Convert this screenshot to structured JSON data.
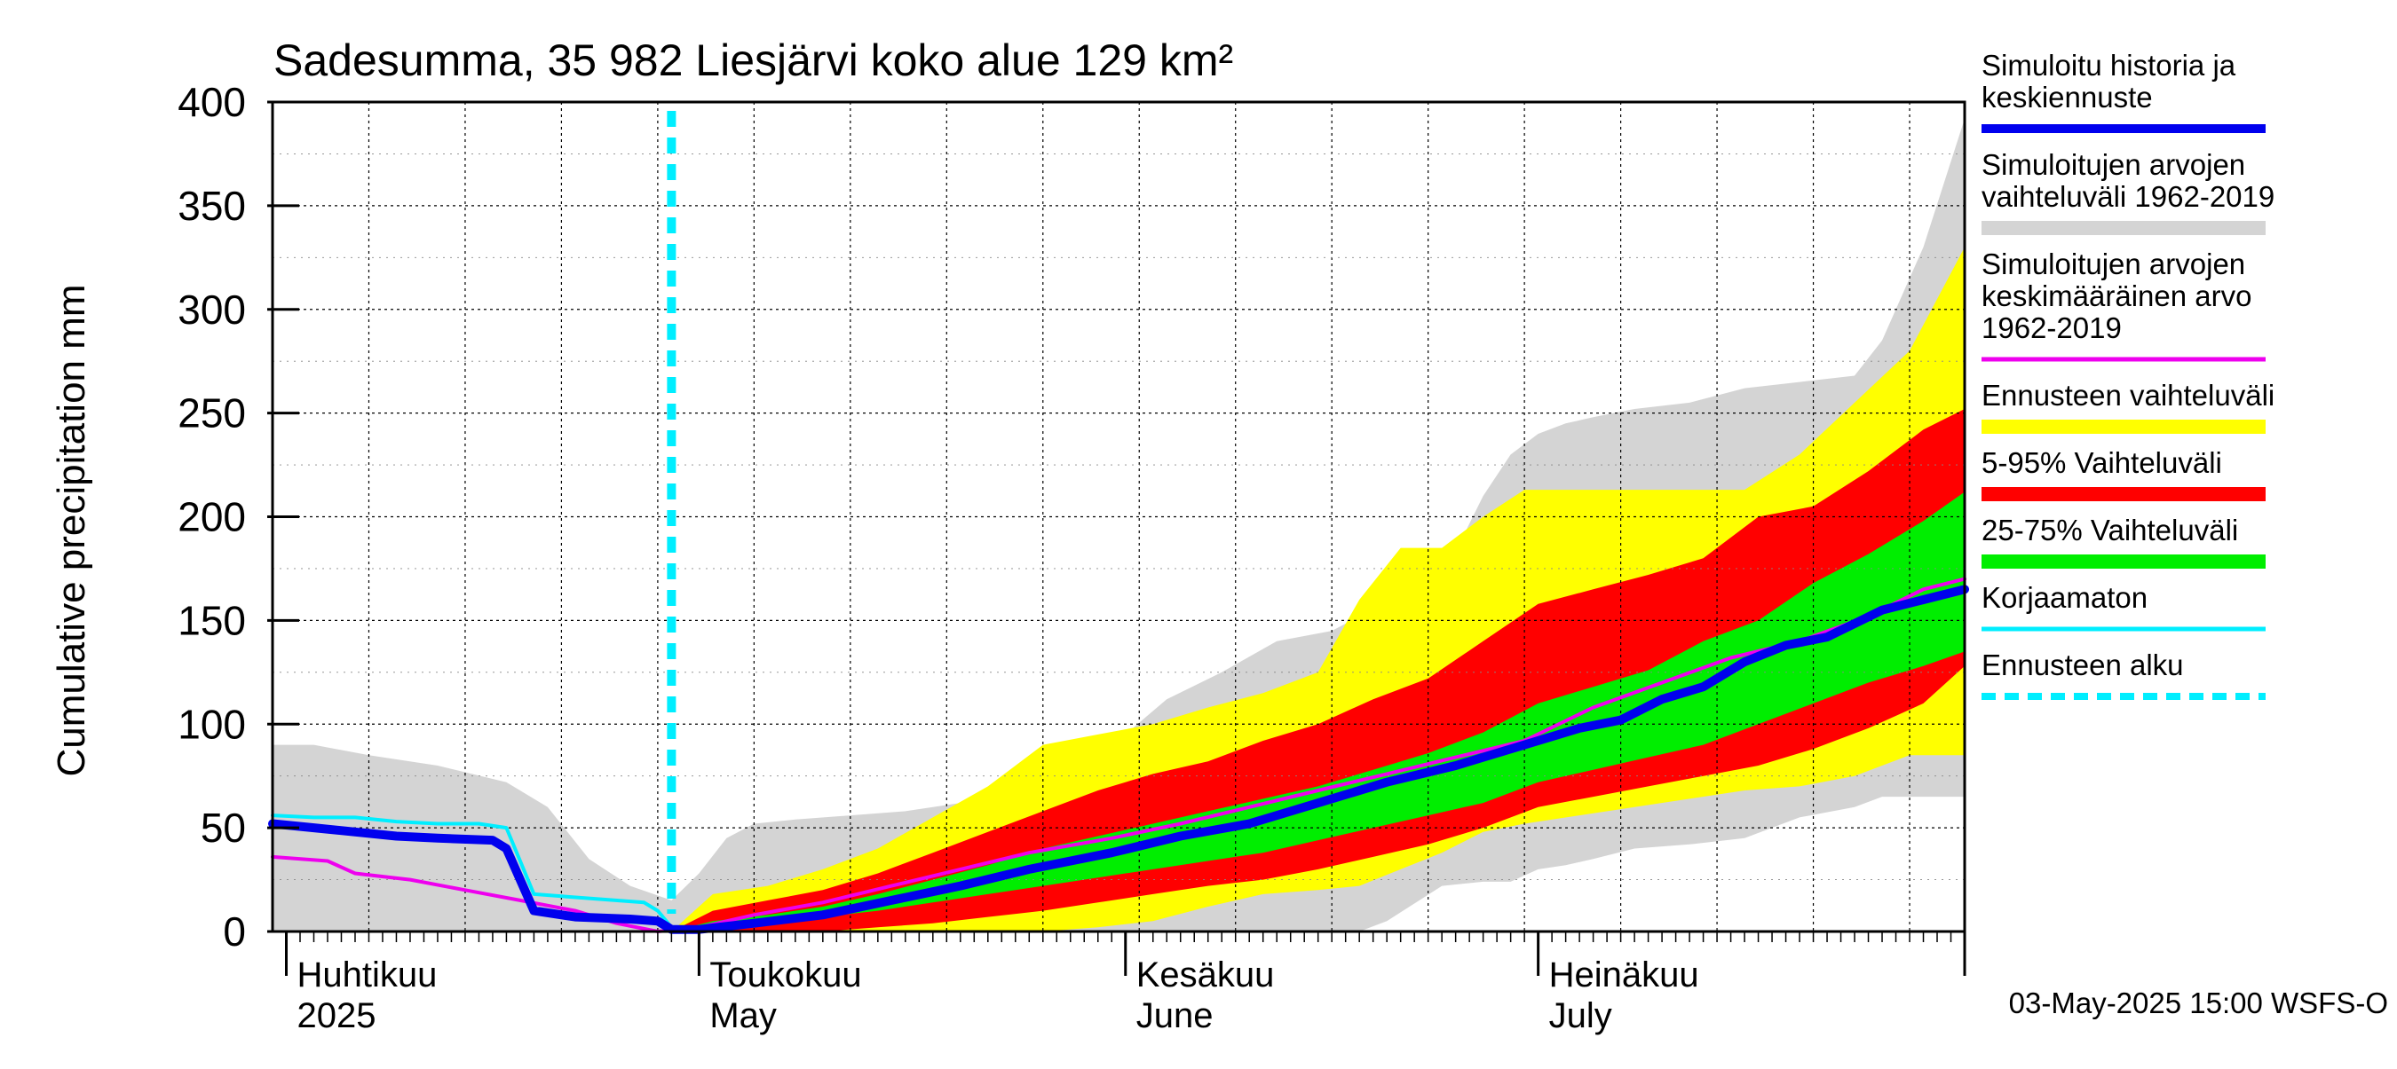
{
  "title": "Sadesumma, 35 982 Liesjärvi koko alue 129 km²",
  "footer": "03-May-2025 15:00 WSFS-O",
  "colors": {
    "historical_range": "#d4d4d4",
    "forecast_range": "#ffff00",
    "p5_95": "#ff0000",
    "p25_75": "#00ee00",
    "simulated": "#0000ee",
    "mean": "#ee00ee",
    "uncorrected": "#00eeff",
    "forecast_start": "#00eeff",
    "grid": "#000000"
  },
  "chart_data": {
    "type": "area",
    "title": "Sadesumma, 35 982 Liesjärvi koko alue 129 km²",
    "ylabel": "Cumulative precipitation   mm",
    "ylim": [
      0,
      400
    ],
    "yticks": [
      0,
      50,
      100,
      150,
      200,
      250,
      300,
      350,
      400
    ],
    "xlim": [
      "2025-03-31",
      "2025-08-01"
    ],
    "x_month_ticks": [
      "2025-04-01",
      "2025-05-01",
      "2025-06-01",
      "2025-07-01",
      "2025-08-01"
    ],
    "month_labels": [
      {
        "date": "2025-04-01",
        "fi": "Huhtikuu",
        "en": "2025"
      },
      {
        "date": "2025-05-01",
        "fi": "Toukokuu",
        "en": "May"
      },
      {
        "date": "2025-06-01",
        "fi": "Kesäkuu",
        "en": "June"
      },
      {
        "date": "2025-07-01",
        "fi": "Heinäkuu",
        "en": "July"
      }
    ],
    "forecast_start": "2025-04-29",
    "legend_position": "right",
    "legend": [
      {
        "label": "Simuloitu historia ja keskiennuste",
        "lines": [
          "Simuloitu historia ja",
          "keskiennuste"
        ],
        "color": "#0000ee",
        "style": "thick"
      },
      {
        "label": "Simuloitujen arvojen vaihteluväli 1962-2019",
        "lines": [
          "Simuloitujen arvojen",
          "vaihteluväli 1962-2019"
        ],
        "color": "#d4d4d4",
        "style": "band"
      },
      {
        "label": "Simuloitujen arvojen keskimääräinen arvo 1962-2019",
        "lines": [
          "Simuloitujen arvojen",
          "keskimääräinen arvo",
          "   1962-2019"
        ],
        "color": "#ee00ee",
        "style": "line"
      },
      {
        "label": "Ennusteen vaihteluväli",
        "lines": [
          "Ennusteen vaihteluväli"
        ],
        "color": "#ffff00",
        "style": "band"
      },
      {
        "label": "5-95% Vaihteluväli",
        "lines": [
          "5-95% Vaihteluväli"
        ],
        "color": "#ff0000",
        "style": "band"
      },
      {
        "label": "25-75% Vaihteluväli",
        "lines": [
          "25-75% Vaihteluväli"
        ],
        "color": "#00ee00",
        "style": "band"
      },
      {
        "label": "Korjaamaton",
        "lines": [
          "Korjaamaton"
        ],
        "color": "#00eeff",
        "style": "line"
      },
      {
        "label": "Ennusteen alku",
        "lines": [
          "Ennusteen alku"
        ],
        "color": "#00eeff",
        "style": "dashed"
      }
    ],
    "series": [
      {
        "name": "Simuloitujen arvojen vaihteluväli 1962-2019",
        "kind": "band",
        "x": [
          "2025-03-31",
          "2025-04-03",
          "2025-04-07",
          "2025-04-12",
          "2025-04-17",
          "2025-04-20",
          "2025-04-23",
          "2025-04-26",
          "2025-04-29",
          "2025-05-01",
          "2025-05-03",
          "2025-05-05",
          "2025-05-08",
          "2025-05-12",
          "2025-05-16",
          "2025-05-20",
          "2025-05-24",
          "2025-05-28",
          "2025-06-01",
          "2025-06-04",
          "2025-06-08",
          "2025-06-12",
          "2025-06-16",
          "2025-06-18",
          "2025-06-20",
          "2025-06-24",
          "2025-06-27",
          "2025-06-29",
          "2025-07-01",
          "2025-07-03",
          "2025-07-05",
          "2025-07-08",
          "2025-07-12",
          "2025-07-16",
          "2025-07-20",
          "2025-07-24",
          "2025-07-26",
          "2025-07-29",
          "2025-08-01"
        ],
        "lower": [
          0,
          0,
          0,
          0,
          0,
          0,
          0,
          0,
          0,
          0,
          0,
          0,
          0,
          0,
          0,
          0,
          0,
          0,
          0,
          0,
          0,
          0,
          0,
          0,
          5,
          22,
          24,
          24,
          30,
          32,
          35,
          40,
          42,
          45,
          55,
          60,
          65,
          65,
          65
        ],
        "upper": [
          90,
          90,
          85,
          80,
          72,
          60,
          35,
          22,
          15,
          28,
          45,
          52,
          54,
          56,
          58,
          62,
          70,
          82,
          95,
          112,
          125,
          140,
          145,
          152,
          158,
          170,
          210,
          230,
          240,
          245,
          248,
          252,
          255,
          262,
          265,
          268,
          285,
          330,
          392
        ]
      },
      {
        "name": "Ennusteen vaihteluväli",
        "kind": "band",
        "x": [
          "2025-04-29",
          "2025-05-02",
          "2025-05-06",
          "2025-05-10",
          "2025-05-14",
          "2025-05-18",
          "2025-05-22",
          "2025-05-26",
          "2025-05-30",
          "2025-06-03",
          "2025-06-07",
          "2025-06-11",
          "2025-06-15",
          "2025-06-18",
          "2025-06-21",
          "2025-06-24",
          "2025-06-27",
          "2025-06-30",
          "2025-07-04",
          "2025-07-08",
          "2025-07-12",
          "2025-07-16",
          "2025-07-20",
          "2025-07-24",
          "2025-07-28",
          "2025-08-01"
        ],
        "lower": [
          0,
          0,
          0,
          0,
          0,
          0,
          0,
          0,
          2,
          5,
          12,
          18,
          20,
          22,
          30,
          38,
          48,
          52,
          56,
          60,
          64,
          68,
          70,
          75,
          85,
          85
        ],
        "upper": [
          0,
          18,
          22,
          30,
          40,
          55,
          70,
          90,
          95,
          100,
          108,
          115,
          125,
          160,
          185,
          185,
          200,
          213,
          213,
          213,
          213,
          213,
          230,
          255,
          280,
          330
        ]
      },
      {
        "name": "5-95% Vaihteluväli",
        "kind": "band",
        "x": [
          "2025-04-29",
          "2025-05-02",
          "2025-05-06",
          "2025-05-10",
          "2025-05-14",
          "2025-05-18",
          "2025-05-22",
          "2025-05-26",
          "2025-05-30",
          "2025-06-03",
          "2025-06-07",
          "2025-06-11",
          "2025-06-15",
          "2025-06-19",
          "2025-06-23",
          "2025-06-27",
          "2025-07-01",
          "2025-07-05",
          "2025-07-09",
          "2025-07-13",
          "2025-07-17",
          "2025-07-21",
          "2025-07-25",
          "2025-07-29",
          "2025-08-01"
        ],
        "lower": [
          0,
          0,
          0,
          0,
          2,
          4,
          7,
          10,
          14,
          18,
          22,
          25,
          30,
          36,
          42,
          50,
          60,
          65,
          70,
          75,
          80,
          88,
          98,
          110,
          128
        ],
        "upper": [
          0,
          10,
          15,
          20,
          28,
          38,
          48,
          58,
          68,
          76,
          82,
          92,
          100,
          112,
          122,
          140,
          158,
          165,
          172,
          180,
          200,
          205,
          222,
          242,
          252
        ]
      },
      {
        "name": "25-75% Vaihteluväli",
        "kind": "band",
        "x": [
          "2025-04-29",
          "2025-05-02",
          "2025-05-06",
          "2025-05-10",
          "2025-05-14",
          "2025-05-18",
          "2025-05-22",
          "2025-05-26",
          "2025-05-30",
          "2025-06-03",
          "2025-06-07",
          "2025-06-11",
          "2025-06-15",
          "2025-06-19",
          "2025-06-23",
          "2025-06-27",
          "2025-07-01",
          "2025-07-05",
          "2025-07-09",
          "2025-07-13",
          "2025-07-17",
          "2025-07-21",
          "2025-07-25",
          "2025-07-29",
          "2025-08-01"
        ],
        "lower": [
          0,
          2,
          4,
          7,
          10,
          14,
          18,
          22,
          26,
          30,
          34,
          38,
          44,
          50,
          56,
          62,
          72,
          78,
          84,
          90,
          100,
          110,
          120,
          128,
          135
        ],
        "upper": [
          0,
          5,
          8,
          12,
          18,
          25,
          32,
          40,
          46,
          52,
          58,
          64,
          70,
          78,
          86,
          96,
          110,
          118,
          126,
          140,
          150,
          168,
          182,
          198,
          212
        ]
      },
      {
        "name": "Simuloitujen arvojen keskimääräinen arvo 1962-2019",
        "kind": "line",
        "x": [
          "2025-03-31",
          "2025-04-04",
          "2025-04-06",
          "2025-04-10",
          "2025-04-14",
          "2025-04-18",
          "2025-04-22",
          "2025-04-25",
          "2025-04-28",
          "2025-05-01",
          "2025-05-05",
          "2025-05-10",
          "2025-05-15",
          "2025-05-20",
          "2025-05-25",
          "2025-05-31",
          "2025-06-05",
          "2025-06-10",
          "2025-06-15",
          "2025-06-20",
          "2025-06-25",
          "2025-06-30",
          "2025-07-05",
          "2025-07-10",
          "2025-07-15",
          "2025-07-20",
          "2025-07-25",
          "2025-07-29",
          "2025-08-01"
        ],
        "values": [
          36,
          34,
          28,
          25,
          20,
          15,
          10,
          4,
          0,
          2,
          8,
          14,
          22,
          30,
          38,
          45,
          52,
          60,
          68,
          76,
          84,
          92,
          108,
          120,
          132,
          140,
          152,
          165,
          170
        ]
      },
      {
        "name": "Korjaamaton",
        "kind": "line",
        "x": [
          "2025-03-31",
          "2025-04-03",
          "2025-04-06",
          "2025-04-09",
          "2025-04-12",
          "2025-04-15",
          "2025-04-17",
          "2025-04-19",
          "2025-04-23",
          "2025-04-27",
          "2025-04-28",
          "2025-04-29",
          "2025-05-01",
          "2025-05-03"
        ],
        "values": [
          56,
          55,
          55,
          53,
          52,
          52,
          50,
          18,
          16,
          14,
          10,
          2,
          1,
          2
        ]
      },
      {
        "name": "Simuloitu historia ja keskiennuste",
        "kind": "line",
        "x": [
          "2025-03-31",
          "2025-04-03",
          "2025-04-06",
          "2025-04-09",
          "2025-04-12",
          "2025-04-16",
          "2025-04-17",
          "2025-04-19",
          "2025-04-22",
          "2025-04-26",
          "2025-04-28",
          "2025-04-29",
          "2025-05-01",
          "2025-05-05",
          "2025-05-10",
          "2025-05-15",
          "2025-05-20",
          "2025-05-25",
          "2025-05-31",
          "2025-06-05",
          "2025-06-10",
          "2025-06-15",
          "2025-06-20",
          "2025-06-25",
          "2025-06-30",
          "2025-07-04",
          "2025-07-07",
          "2025-07-10",
          "2025-07-13",
          "2025-07-16",
          "2025-07-19",
          "2025-07-22",
          "2025-07-26",
          "2025-07-29",
          "2025-08-01"
        ],
        "values": [
          52,
          50,
          48,
          46,
          45,
          44,
          40,
          10,
          7,
          6,
          5,
          1,
          1,
          4,
          8,
          15,
          22,
          30,
          38,
          46,
          52,
          62,
          72,
          80,
          90,
          98,
          102,
          112,
          118,
          130,
          138,
          142,
          155,
          160,
          165
        ]
      }
    ]
  }
}
